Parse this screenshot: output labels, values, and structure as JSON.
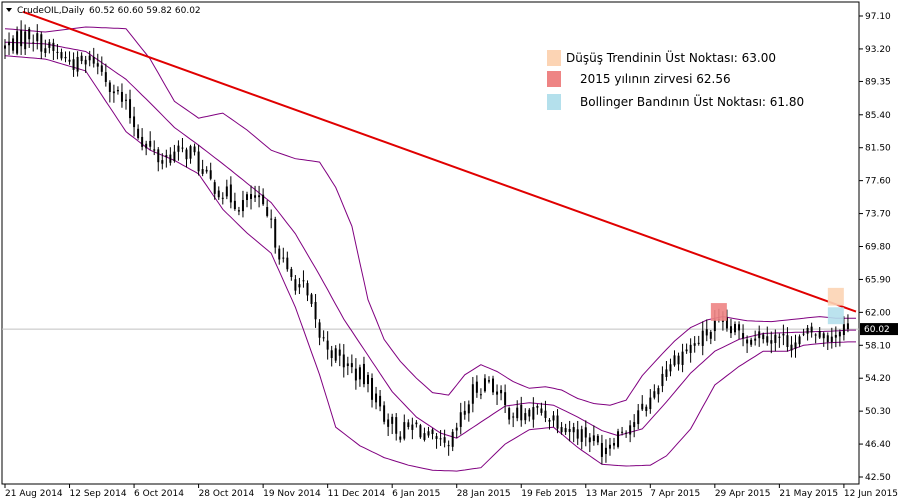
{
  "header": {
    "symbol_label": "CrudeOIL,Daily",
    "ohlc": "60.52 60.60 59.82 60.02"
  },
  "legend": [
    {
      "label": "Düşüş Trendinin Üst Noktası: 63.00",
      "color": "#fcd4b4"
    },
    {
      "label": "2015 yılının zirvesi 62.56",
      "color": "#ee8484"
    },
    {
      "label": "Bollinger Bandının Üst Noktası: 61.80",
      "color": "#b4e0ec"
    }
  ],
  "current_price": {
    "label": "60.02",
    "value": 60.02
  },
  "colors": {
    "candle": "#000000",
    "bollinger": "#800080",
    "trendline": "#e00000",
    "price_line": "#c0c0c0",
    "price_tag": "#000000"
  },
  "chart_data": {
    "type": "candlestick",
    "title": "",
    "ylim": [
      42.5,
      97.1
    ],
    "y_ticks": [
      "97.10",
      "93.20",
      "89.35",
      "85.40",
      "81.50",
      "77.60",
      "73.70",
      "69.80",
      "65.90",
      "62.00",
      "58.10",
      "54.20",
      "50.30",
      "46.40",
      "42.50"
    ],
    "x_ticks": [
      "21 Aug 2014",
      "12 Sep 2014",
      "6 Oct 2014",
      "28 Oct 2014",
      "19 Nov 2014",
      "11 Dec 2014",
      "6 Jan 2015",
      "28 Jan 2015",
      "19 Feb 2015",
      "13 Mar 2015",
      "7 Apr 2015",
      "29 Apr 2015",
      "21 May 2015",
      "12 Jun 2015"
    ],
    "x_tick_index": [
      0,
      16,
      32,
      48,
      64,
      80,
      96,
      112,
      128,
      144,
      160,
      176,
      192,
      208
    ],
    "close_anchors": [
      [
        0,
        93.4
      ],
      [
        6,
        95.0
      ],
      [
        12,
        92.8
      ],
      [
        18,
        91.3
      ],
      [
        22,
        92.0
      ],
      [
        26,
        89.2
      ],
      [
        30,
        86.2
      ],
      [
        34,
        82.4
      ],
      [
        38,
        80.2
      ],
      [
        42,
        80.8
      ],
      [
        46,
        81.1
      ],
      [
        50,
        77.8
      ],
      [
        54,
        76.2
      ],
      [
        58,
        74.8
      ],
      [
        62,
        75.6
      ],
      [
        66,
        72.1
      ],
      [
        70,
        66.4
      ],
      [
        74,
        64.9
      ],
      [
        78,
        59.2
      ],
      [
        82,
        56.9
      ],
      [
        86,
        55.2
      ],
      [
        90,
        53.6
      ],
      [
        94,
        49.8
      ],
      [
        98,
        47.8
      ],
      [
        102,
        48.6
      ],
      [
        106,
        46.5
      ],
      [
        110,
        45.6
      ],
      [
        112,
        48.2
      ],
      [
        116,
        52.6
      ],
      [
        120,
        54.2
      ],
      [
        124,
        50.6
      ],
      [
        128,
        49.6
      ],
      [
        132,
        50.4
      ],
      [
        136,
        49.6
      ],
      [
        140,
        48.2
      ],
      [
        144,
        47.6
      ],
      [
        148,
        45.9
      ],
      [
        152,
        47.8
      ],
      [
        156,
        49.2
      ],
      [
        160,
        51.6
      ],
      [
        164,
        55.8
      ],
      [
        168,
        57.3
      ],
      [
        172,
        58.6
      ],
      [
        176,
        60.4
      ],
      [
        180,
        59.8
      ],
      [
        184,
        59.2
      ],
      [
        188,
        59.6
      ],
      [
        192,
        58.9
      ],
      [
        196,
        58.4
      ],
      [
        200,
        59.6
      ],
      [
        204,
        59.1
      ],
      [
        208,
        60.4
      ],
      [
        209,
        60.02
      ]
    ],
    "bollinger_upper": [
      [
        0,
        95.6
      ],
      [
        10,
        95.2
      ],
      [
        20,
        95.8
      ],
      [
        30,
        95.6
      ],
      [
        36,
        92.0
      ],
      [
        42,
        87.0
      ],
      [
        48,
        85.0
      ],
      [
        54,
        85.6
      ],
      [
        60,
        83.6
      ],
      [
        66,
        81.2
      ],
      [
        72,
        80.2
      ],
      [
        78,
        79.8
      ],
      [
        82,
        76.8
      ],
      [
        86,
        72.2
      ],
      [
        90,
        63.5
      ],
      [
        94,
        58.8
      ],
      [
        98,
        56.2
      ],
      [
        102,
        54.2
      ],
      [
        106,
        52.5
      ],
      [
        110,
        52.2
      ],
      [
        114,
        54.6
      ],
      [
        118,
        55.8
      ],
      [
        122,
        55.0
      ],
      [
        126,
        53.8
      ],
      [
        130,
        53.0
      ],
      [
        134,
        53.2
      ],
      [
        138,
        52.8
      ],
      [
        142,
        51.8
      ],
      [
        146,
        51.2
      ],
      [
        150,
        51.0
      ],
      [
        154,
        51.6
      ],
      [
        158,
        54.5
      ],
      [
        162,
        56.6
      ],
      [
        166,
        58.6
      ],
      [
        170,
        60.2
      ],
      [
        174,
        61.1
      ],
      [
        178,
        61.5
      ],
      [
        184,
        61.0
      ],
      [
        190,
        60.9
      ],
      [
        196,
        61.2
      ],
      [
        202,
        61.5
      ],
      [
        206,
        61.3
      ],
      [
        209,
        61.3
      ]
    ],
    "bollinger_middle": [
      [
        0,
        94.0
      ],
      [
        10,
        93.8
      ],
      [
        20,
        92.9
      ],
      [
        30,
        89.6
      ],
      [
        36,
        86.8
      ],
      [
        42,
        83.9
      ],
      [
        48,
        81.8
      ],
      [
        54,
        79.6
      ],
      [
        60,
        77.3
      ],
      [
        66,
        75.0
      ],
      [
        72,
        71.3
      ],
      [
        78,
        66.4
      ],
      [
        84,
        61.2
      ],
      [
        90,
        56.9
      ],
      [
        96,
        52.6
      ],
      [
        102,
        49.6
      ],
      [
        108,
        47.7
      ],
      [
        112,
        47.1
      ],
      [
        118,
        49.0
      ],
      [
        124,
        50.9
      ],
      [
        130,
        51.3
      ],
      [
        136,
        51.0
      ],
      [
        142,
        49.6
      ],
      [
        148,
        48.0
      ],
      [
        152,
        47.4
      ],
      [
        158,
        48.2
      ],
      [
        164,
        51.4
      ],
      [
        170,
        54.8
      ],
      [
        176,
        57.4
      ],
      [
        182,
        58.8
      ],
      [
        188,
        59.5
      ],
      [
        194,
        59.6
      ],
      [
        200,
        59.7
      ],
      [
        206,
        59.8
      ],
      [
        209,
        59.9
      ]
    ],
    "bollinger_lower": [
      [
        0,
        92.4
      ],
      [
        10,
        92.0
      ],
      [
        20,
        90.6
      ],
      [
        30,
        83.4
      ],
      [
        36,
        81.2
      ],
      [
        42,
        80.0
      ],
      [
        48,
        78.4
      ],
      [
        54,
        74.2
      ],
      [
        60,
        71.4
      ],
      [
        66,
        69.0
      ],
      [
        72,
        62.6
      ],
      [
        78,
        54.6
      ],
      [
        82,
        48.4
      ],
      [
        88,
        46.2
      ],
      [
        94,
        44.8
      ],
      [
        100,
        43.9
      ],
      [
        106,
        43.3
      ],
      [
        112,
        43.2
      ],
      [
        118,
        43.6
      ],
      [
        124,
        46.4
      ],
      [
        130,
        48.1
      ],
      [
        136,
        48.4
      ],
      [
        142,
        46.0
      ],
      [
        148,
        44.0
      ],
      [
        154,
        43.8
      ],
      [
        160,
        43.9
      ],
      [
        164,
        45.0
      ],
      [
        170,
        48.2
      ],
      [
        176,
        53.4
      ],
      [
        182,
        55.6
      ],
      [
        188,
        57.4
      ],
      [
        194,
        57.4
      ],
      [
        198,
        58.1
      ],
      [
        204,
        58.4
      ],
      [
        209,
        58.5
      ]
    ],
    "trendline": [
      [
        0,
        97.6
      ],
      [
        211,
        62.1
      ]
    ],
    "markers": [
      {
        "name": "trend-top",
        "x": 206,
        "y_low": 62.8,
        "y_high": 64.9,
        "color": "#fcd4b4"
      },
      {
        "name": "year-high",
        "x": 177,
        "y_low": 61.0,
        "y_high": 63.1,
        "color": "#ee8484"
      },
      {
        "name": "bollinger-top",
        "x": 206,
        "y_low": 60.6,
        "y_high": 62.6,
        "color": "#b4e0ec"
      }
    ]
  }
}
